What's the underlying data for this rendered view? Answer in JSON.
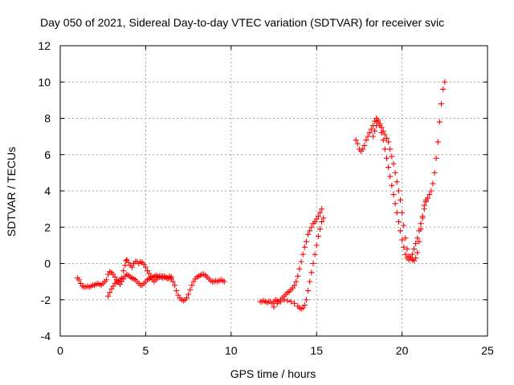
{
  "chart_data": {
    "type": "scatter",
    "title": "Day 050 of 2021, Sidereal Day-to-day VTEC variation (SDTVAR) for receiver svic",
    "xlabel": "GPS time / hours",
    "ylabel": "SDTVAR / TECUs",
    "xlim": [
      0,
      25
    ],
    "ylim": [
      -4,
      12
    ],
    "xticks": [
      0,
      5,
      10,
      15,
      20,
      25
    ],
    "yticks": [
      -4,
      -2,
      0,
      2,
      4,
      6,
      8,
      10,
      12
    ],
    "grid": true,
    "marker": "+",
    "color": "#ff0000",
    "series": [
      {
        "values": [
          [
            1.0,
            -0.8
          ],
          [
            1.1,
            -0.9
          ],
          [
            1.2,
            -1.1
          ],
          [
            1.3,
            -1.25
          ],
          [
            1.4,
            -1.3
          ],
          [
            1.5,
            -1.3
          ],
          [
            1.6,
            -1.25
          ],
          [
            1.7,
            -1.3
          ],
          [
            1.8,
            -1.25
          ],
          [
            1.9,
            -1.2
          ],
          [
            2.0,
            -1.2
          ],
          [
            2.1,
            -1.15
          ],
          [
            2.2,
            -1.1
          ],
          [
            2.3,
            -1.15
          ],
          [
            2.4,
            -1.2
          ],
          [
            2.5,
            -1.1
          ],
          [
            2.6,
            -1.0
          ],
          [
            2.7,
            -0.9
          ],
          [
            2.8,
            -0.6
          ],
          [
            2.9,
            -0.45
          ],
          [
            3.0,
            -0.5
          ],
          [
            3.1,
            -0.6
          ],
          [
            3.2,
            -0.75
          ],
          [
            3.3,
            -0.9
          ],
          [
            3.4,
            -1.05
          ],
          [
            3.5,
            -1.15
          ],
          [
            3.6,
            -1.0
          ],
          [
            3.7,
            -0.85
          ],
          [
            3.8,
            -0.7
          ],
          [
            3.9,
            -0.6
          ],
          [
            4.0,
            -0.65
          ],
          [
            4.1,
            -0.75
          ],
          [
            4.2,
            -0.8
          ],
          [
            4.3,
            -0.85
          ],
          [
            4.4,
            -0.9
          ],
          [
            4.5,
            -1.0
          ],
          [
            4.6,
            -1.1
          ],
          [
            4.7,
            -1.2
          ],
          [
            4.8,
            -1.2
          ],
          [
            4.9,
            -1.1
          ],
          [
            5.0,
            -1.0
          ],
          [
            5.1,
            -0.9
          ],
          [
            5.2,
            -0.85
          ],
          [
            5.3,
            -0.8
          ],
          [
            5.4,
            -0.75
          ],
          [
            5.5,
            -0.7
          ],
          [
            5.6,
            -0.65
          ],
          [
            5.7,
            -0.7
          ],
          [
            5.8,
            -0.75
          ],
          [
            5.9,
            -0.7
          ],
          [
            6.0,
            -0.7
          ],
          [
            6.1,
            -0.75
          ],
          [
            6.2,
            -0.8
          ],
          [
            6.3,
            -0.85
          ],
          [
            6.4,
            -0.8
          ],
          [
            6.5,
            -0.85
          ],
          [
            6.6,
            -1.0
          ],
          [
            6.7,
            -1.2
          ],
          [
            6.8,
            -1.5
          ],
          [
            6.9,
            -1.75
          ],
          [
            7.0,
            -1.9
          ],
          [
            7.1,
            -2.0
          ],
          [
            7.2,
            -2.05
          ],
          [
            7.3,
            -2.0
          ],
          [
            7.4,
            -1.9
          ],
          [
            7.5,
            -1.7
          ],
          [
            7.6,
            -1.45
          ],
          [
            7.7,
            -1.2
          ],
          [
            7.8,
            -1.0
          ],
          [
            7.9,
            -0.85
          ],
          [
            8.0,
            -0.75
          ],
          [
            8.1,
            -0.7
          ],
          [
            8.2,
            -0.65
          ],
          [
            8.3,
            -0.6
          ],
          [
            8.4,
            -0.6
          ],
          [
            8.5,
            -0.65
          ],
          [
            8.6,
            -0.75
          ],
          [
            8.7,
            -0.85
          ],
          [
            8.8,
            -0.95
          ],
          [
            8.9,
            -1.0
          ],
          [
            9.0,
            -1.0
          ],
          [
            9.1,
            -0.95
          ],
          [
            9.2,
            -1.0
          ],
          [
            9.3,
            -0.95
          ],
          [
            9.4,
            -0.9
          ],
          [
            9.5,
            -0.95
          ],
          [
            9.6,
            -1.0
          ],
          [
            2.8,
            -1.8
          ],
          [
            2.9,
            -1.6
          ],
          [
            3.0,
            -1.4
          ],
          [
            3.1,
            -1.25
          ],
          [
            3.2,
            -1.1
          ],
          [
            3.3,
            -1.0
          ],
          [
            3.4,
            -0.95
          ],
          [
            3.5,
            -0.9
          ],
          [
            3.6,
            -0.8
          ],
          [
            3.7,
            -0.4
          ],
          [
            3.8,
            -0.1
          ],
          [
            3.85,
            0.15
          ],
          [
            3.9,
            0.2
          ],
          [
            4.0,
            0.05
          ],
          [
            4.1,
            -0.1
          ],
          [
            4.2,
            -0.2
          ],
          [
            4.3,
            0.0
          ],
          [
            4.4,
            0.1
          ],
          [
            4.5,
            0.1
          ],
          [
            4.6,
            0.0
          ],
          [
            4.7,
            0.1
          ],
          [
            4.8,
            0.05
          ],
          [
            4.9,
            -0.05
          ],
          [
            5.0,
            -0.2
          ],
          [
            5.1,
            -0.4
          ],
          [
            5.2,
            -0.55
          ],
          [
            5.3,
            -0.7
          ],
          [
            5.4,
            -0.9
          ],
          [
            5.5,
            -1.0
          ],
          [
            5.6,
            -0.9
          ],
          [
            5.7,
            -0.8
          ],
          [
            5.8,
            -0.7
          ],
          [
            5.9,
            -0.75
          ],
          [
            6.0,
            -0.8
          ],
          [
            6.1,
            -0.7
          ],
          [
            6.2,
            -0.75
          ],
          [
            6.3,
            -0.8
          ],
          [
            6.4,
            -0.7
          ],
          [
            6.5,
            -0.75
          ],
          [
            11.7,
            -2.1
          ],
          [
            11.8,
            -2.1
          ],
          [
            11.9,
            -2.05
          ],
          [
            12.0,
            -2.1
          ],
          [
            12.1,
            -2.15
          ],
          [
            12.2,
            -2.1
          ],
          [
            12.3,
            -2.1
          ],
          [
            12.4,
            -2.2
          ],
          [
            12.5,
            -2.1
          ],
          [
            12.6,
            -2.0
          ],
          [
            12.7,
            -2.05
          ],
          [
            12.8,
            -2.1
          ],
          [
            12.9,
            -2.0
          ],
          [
            13.0,
            -1.9
          ],
          [
            13.1,
            -1.8
          ],
          [
            13.2,
            -1.7
          ],
          [
            13.3,
            -1.6
          ],
          [
            13.4,
            -1.55
          ],
          [
            13.5,
            -1.45
          ],
          [
            13.6,
            -1.35
          ],
          [
            13.7,
            -1.2
          ],
          [
            13.8,
            -1.0
          ],
          [
            13.9,
            -0.7
          ],
          [
            14.0,
            -0.3
          ],
          [
            14.1,
            0.1
          ],
          [
            14.2,
            0.5
          ],
          [
            14.3,
            0.9
          ],
          [
            14.4,
            1.2
          ],
          [
            14.5,
            1.6
          ],
          [
            14.6,
            1.8
          ],
          [
            14.7,
            2.0
          ],
          [
            14.8,
            2.2
          ],
          [
            14.9,
            2.3
          ],
          [
            15.0,
            2.45
          ],
          [
            15.1,
            2.6
          ],
          [
            15.2,
            2.8
          ],
          [
            15.3,
            3.0
          ],
          [
            12.5,
            -2.4
          ],
          [
            12.7,
            -2.2
          ],
          [
            12.9,
            -2.1
          ],
          [
            13.1,
            -2.0
          ],
          [
            13.3,
            -2.05
          ],
          [
            13.5,
            -2.1
          ],
          [
            13.7,
            -2.2
          ],
          [
            13.9,
            -2.35
          ],
          [
            14.0,
            -2.45
          ],
          [
            14.1,
            -2.5
          ],
          [
            14.2,
            -2.45
          ],
          [
            14.3,
            -2.3
          ],
          [
            14.4,
            -2.0
          ],
          [
            14.5,
            -1.5
          ],
          [
            14.6,
            -1.0
          ],
          [
            14.7,
            -0.5
          ],
          [
            14.8,
            0.0
          ],
          [
            14.9,
            0.5
          ],
          [
            15.0,
            1.0
          ],
          [
            15.1,
            1.5
          ],
          [
            15.2,
            1.9
          ],
          [
            15.3,
            2.3
          ],
          [
            15.4,
            2.5
          ],
          [
            17.3,
            6.8
          ],
          [
            17.4,
            6.6
          ],
          [
            17.5,
            6.3
          ],
          [
            17.6,
            6.2
          ],
          [
            17.7,
            6.3
          ],
          [
            17.8,
            6.5
          ],
          [
            17.9,
            6.8
          ],
          [
            18.0,
            7.0
          ],
          [
            18.1,
            7.2
          ],
          [
            18.2,
            7.4
          ],
          [
            18.3,
            7.6
          ],
          [
            18.4,
            7.85
          ],
          [
            18.5,
            8.0
          ],
          [
            18.6,
            7.9
          ],
          [
            18.7,
            7.7
          ],
          [
            18.8,
            7.5
          ],
          [
            18.9,
            7.3
          ],
          [
            19.0,
            7.1
          ],
          [
            19.1,
            6.9
          ],
          [
            19.2,
            6.7
          ],
          [
            19.3,
            6.3
          ],
          [
            19.4,
            5.9
          ],
          [
            19.5,
            5.5
          ],
          [
            19.6,
            5.0
          ],
          [
            19.7,
            4.5
          ],
          [
            19.8,
            4.0
          ],
          [
            19.9,
            3.5
          ],
          [
            20.0,
            2.8
          ],
          [
            20.1,
            2.1
          ],
          [
            20.2,
            1.4
          ],
          [
            20.3,
            0.8
          ],
          [
            20.4,
            0.4
          ],
          [
            20.5,
            0.3
          ],
          [
            20.6,
            0.2
          ],
          [
            20.7,
            0.15
          ],
          [
            20.8,
            0.3
          ],
          [
            20.9,
            0.6
          ],
          [
            21.0,
            1.2
          ],
          [
            21.1,
            1.9
          ],
          [
            21.2,
            2.5
          ],
          [
            21.3,
            3.0
          ],
          [
            21.4,
            3.4
          ],
          [
            21.5,
            3.6
          ],
          [
            21.6,
            3.8
          ],
          [
            21.7,
            4.0
          ],
          [
            21.8,
            4.4
          ],
          [
            21.9,
            5.0
          ],
          [
            22.0,
            5.8
          ],
          [
            22.1,
            6.7
          ],
          [
            22.2,
            7.8
          ],
          [
            22.3,
            8.8
          ],
          [
            22.4,
            9.6
          ],
          [
            22.5,
            10.0
          ],
          [
            18.3,
            7.0
          ],
          [
            18.4,
            7.3
          ],
          [
            18.5,
            7.6
          ],
          [
            18.6,
            7.8
          ],
          [
            18.7,
            7.6
          ],
          [
            18.8,
            7.2
          ],
          [
            18.9,
            6.8
          ],
          [
            19.0,
            6.3
          ],
          [
            19.1,
            5.8
          ],
          [
            19.2,
            5.3
          ],
          [
            19.3,
            4.8
          ],
          [
            19.4,
            4.3
          ],
          [
            19.5,
            3.8
          ],
          [
            19.6,
            3.3
          ],
          [
            19.7,
            2.8
          ],
          [
            19.8,
            2.3
          ],
          [
            19.9,
            1.8
          ],
          [
            20.0,
            1.3
          ],
          [
            20.1,
            0.9
          ],
          [
            20.2,
            0.5
          ],
          [
            20.3,
            0.3
          ],
          [
            20.4,
            0.2
          ],
          [
            20.5,
            0.3
          ],
          [
            20.6,
            0.5
          ],
          [
            20.7,
            0.8
          ],
          [
            20.8,
            1.1
          ],
          [
            20.9,
            1.4
          ],
          [
            21.0,
            1.8
          ],
          [
            21.1,
            2.2
          ],
          [
            21.2,
            2.6
          ],
          [
            21.3,
            3.2
          ],
          [
            21.4,
            3.5
          ]
        ]
      }
    ]
  }
}
